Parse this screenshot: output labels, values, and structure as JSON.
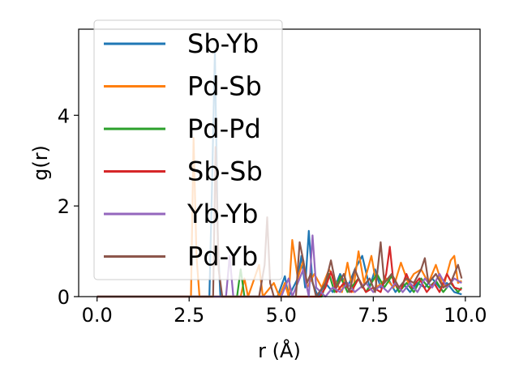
{
  "chart_data": {
    "type": "line",
    "xlabel": "r (Å)",
    "ylabel": "g(r)",
    "xlim": [
      -0.5,
      10.4
    ],
    "ylim": [
      0,
      5.9
    ],
    "xticks": [
      "0.0",
      "2.5",
      "5.0",
      "7.5",
      "10.0"
    ],
    "xtick_values": [
      0,
      2.5,
      5,
      7.5,
      10
    ],
    "yticks": [
      "0",
      "2",
      "4"
    ],
    "ytick_values": [
      0,
      2,
      4
    ],
    "legend_position": "upper-left",
    "series": [
      {
        "name": "Sb-Yb",
        "color": "#1f77b4",
        "points": [
          [
            0,
            0
          ],
          [
            3.05,
            0
          ],
          [
            3.12,
            2.4
          ],
          [
            3.2,
            5.4
          ],
          [
            3.28,
            1.2
          ],
          [
            3.35,
            0
          ],
          [
            4.9,
            0
          ],
          [
            5.1,
            0.45
          ],
          [
            5.2,
            0
          ],
          [
            5.45,
            0.4
          ],
          [
            5.55,
            0.9
          ],
          [
            5.65,
            0.2
          ],
          [
            5.75,
            1.45
          ],
          [
            5.85,
            0.3
          ],
          [
            6.0,
            0
          ],
          [
            6.2,
            0.3
          ],
          [
            6.4,
            0.1
          ],
          [
            6.6,
            0.5
          ],
          [
            6.8,
            0.2
          ],
          [
            7.0,
            0.6
          ],
          [
            7.2,
            0.9
          ],
          [
            7.4,
            0.2
          ],
          [
            7.55,
            0.6
          ],
          [
            7.7,
            0.2
          ],
          [
            7.9,
            0.4
          ],
          [
            8.1,
            0.1
          ],
          [
            8.3,
            0.3
          ],
          [
            8.5,
            0.1
          ],
          [
            8.7,
            0.3
          ],
          [
            8.9,
            0.2
          ],
          [
            9.1,
            0.4
          ],
          [
            9.3,
            0.2
          ],
          [
            9.5,
            0.3
          ],
          [
            9.7,
            0.1
          ],
          [
            9.9,
            0.05
          ]
        ]
      },
      {
        "name": "Pd-Sb",
        "color": "#ff7f0e",
        "points": [
          [
            0,
            0
          ],
          [
            2.55,
            0
          ],
          [
            2.62,
            3.5
          ],
          [
            2.7,
            0.9
          ],
          [
            2.78,
            0
          ],
          [
            3.9,
            0
          ],
          [
            4.0,
            0.4
          ],
          [
            4.1,
            0
          ],
          [
            4.4,
            0.7
          ],
          [
            4.5,
            0
          ],
          [
            4.8,
            0.3
          ],
          [
            4.95,
            0
          ],
          [
            5.1,
            0.3
          ],
          [
            5.2,
            0
          ],
          [
            5.3,
            1.25
          ],
          [
            5.45,
            0.4
          ],
          [
            5.6,
            0.8
          ],
          [
            5.7,
            0.2
          ],
          [
            5.9,
            0.5
          ],
          [
            6.1,
            0.2
          ],
          [
            6.3,
            0.6
          ],
          [
            6.5,
            0.3
          ],
          [
            6.65,
            0.1
          ],
          [
            6.8,
            0.75
          ],
          [
            6.95,
            0.1
          ],
          [
            7.1,
            1.0
          ],
          [
            7.25,
            0.3
          ],
          [
            7.45,
            0.9
          ],
          [
            7.6,
            0.2
          ],
          [
            7.85,
            0.4
          ],
          [
            8.05,
            0.2
          ],
          [
            8.25,
            0.75
          ],
          [
            8.45,
            0.3
          ],
          [
            8.6,
            0.5
          ],
          [
            8.8,
            0.6
          ],
          [
            9.0,
            0.3
          ],
          [
            9.2,
            0.7
          ],
          [
            9.4,
            0.2
          ],
          [
            9.6,
            0.8
          ],
          [
            9.7,
            0.9
          ],
          [
            9.8,
            0.3
          ],
          [
            9.9,
            0.35
          ]
        ]
      },
      {
        "name": "Pd-Pd",
        "color": "#2ca02c",
        "points": [
          [
            0,
            0
          ],
          [
            3.8,
            0
          ],
          [
            3.9,
            0.6
          ],
          [
            4.0,
            0
          ],
          [
            6.1,
            0
          ],
          [
            6.3,
            0.5
          ],
          [
            6.45,
            0.1
          ],
          [
            6.6,
            0.45
          ],
          [
            6.8,
            0.1
          ],
          [
            7.1,
            0.4
          ],
          [
            7.3,
            0.1
          ],
          [
            7.6,
            0.5
          ],
          [
            7.8,
            0.2
          ],
          [
            8.0,
            0.45
          ],
          [
            8.2,
            0.1
          ],
          [
            8.4,
            0.3
          ],
          [
            8.6,
            0.1
          ],
          [
            8.8,
            0.4
          ],
          [
            9.0,
            0.2
          ],
          [
            9.2,
            0.35
          ],
          [
            9.4,
            0.1
          ],
          [
            9.6,
            0.3
          ],
          [
            9.8,
            0.1
          ],
          [
            9.9,
            0.2
          ]
        ]
      },
      {
        "name": "Sb-Sb",
        "color": "#d62728",
        "points": [
          [
            0,
            0
          ],
          [
            6.05,
            0
          ],
          [
            6.2,
            0.2
          ],
          [
            6.35,
            0.55
          ],
          [
            6.5,
            0.1
          ],
          [
            6.7,
            0.3
          ],
          [
            6.9,
            0.1
          ],
          [
            7.1,
            0.4
          ],
          [
            7.3,
            0.1
          ],
          [
            7.5,
            0.2
          ],
          [
            7.7,
            0.1
          ],
          [
            7.85,
            0.5
          ],
          [
            7.95,
            1.1
          ],
          [
            8.05,
            0.3
          ],
          [
            8.25,
            0.15
          ],
          [
            8.4,
            0.5
          ],
          [
            8.55,
            0.2
          ],
          [
            8.75,
            0.4
          ],
          [
            8.95,
            0.1
          ],
          [
            9.15,
            0.3
          ],
          [
            9.3,
            0.1
          ],
          [
            9.5,
            0.5
          ],
          [
            9.7,
            0.2
          ],
          [
            9.9,
            0.15
          ]
        ]
      },
      {
        "name": "Yb-Yb",
        "color": "#9467bd",
        "points": [
          [
            0,
            0
          ],
          [
            3.5,
            0
          ],
          [
            3.6,
            0.9
          ],
          [
            3.7,
            0
          ],
          [
            5.0,
            0
          ],
          [
            5.2,
            0.4
          ],
          [
            5.3,
            0
          ],
          [
            5.6,
            0.6
          ],
          [
            5.75,
            0
          ],
          [
            5.85,
            1.35
          ],
          [
            5.95,
            0.2
          ],
          [
            6.2,
            0
          ],
          [
            6.4,
            0.2
          ],
          [
            6.6,
            0.1
          ],
          [
            6.8,
            0.3
          ],
          [
            7.0,
            0.1
          ],
          [
            7.3,
            0.3
          ],
          [
            7.5,
            0.1
          ],
          [
            7.7,
            0.25
          ],
          [
            7.9,
            0.1
          ],
          [
            8.1,
            0.3
          ],
          [
            8.3,
            0.1
          ],
          [
            8.5,
            0.3
          ],
          [
            8.7,
            0.1
          ],
          [
            8.9,
            0.4
          ],
          [
            9.1,
            0.2
          ],
          [
            9.3,
            0.5
          ],
          [
            9.5,
            0.2
          ],
          [
            9.7,
            0.4
          ],
          [
            9.9,
            0.3
          ]
        ]
      },
      {
        "name": "Pd-Yb",
        "color": "#8c564b",
        "points": [
          [
            0,
            0
          ],
          [
            3.15,
            0
          ],
          [
            3.22,
            3.3
          ],
          [
            3.3,
            0.6
          ],
          [
            3.4,
            0
          ],
          [
            4.4,
            0
          ],
          [
            4.55,
            0.7
          ],
          [
            4.62,
            1.75
          ],
          [
            4.7,
            0.3
          ],
          [
            4.8,
            0
          ],
          [
            5.4,
            0
          ],
          [
            5.5,
            1.2
          ],
          [
            5.6,
            0.8
          ],
          [
            5.7,
            0.3
          ],
          [
            5.8,
            0.5
          ],
          [
            5.95,
            0
          ],
          [
            6.2,
            0.3
          ],
          [
            6.35,
            0.8
          ],
          [
            6.5,
            0.2
          ],
          [
            6.7,
            0.5
          ],
          [
            6.85,
            0.1
          ],
          [
            7.0,
            0.6
          ],
          [
            7.2,
            0.2
          ],
          [
            7.4,
            0.4
          ],
          [
            7.55,
            0.1
          ],
          [
            7.7,
            1.2
          ],
          [
            7.8,
            0.3
          ],
          [
            8.0,
            0.5
          ],
          [
            8.2,
            0.2
          ],
          [
            8.4,
            0.4
          ],
          [
            8.6,
            0.3
          ],
          [
            8.8,
            0.6
          ],
          [
            8.9,
            0.85
          ],
          [
            9.0,
            0.3
          ],
          [
            9.2,
            0.5
          ],
          [
            9.4,
            0.2
          ],
          [
            9.6,
            0.3
          ],
          [
            9.8,
            0.7
          ],
          [
            9.9,
            0.4
          ]
        ]
      }
    ]
  }
}
